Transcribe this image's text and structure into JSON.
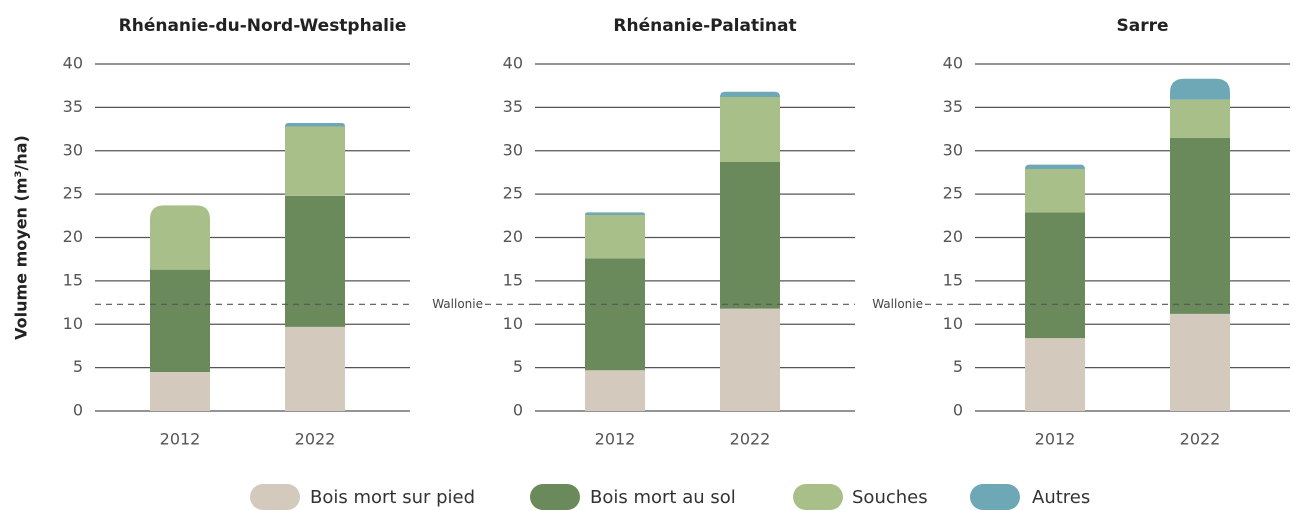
{
  "chart_data": [
    {
      "type": "bar",
      "stacked": true,
      "title": "Rhénanie-du-Nord-Westphalie",
      "y_label": "Volume moyen (m³/ha)",
      "categories": [
        "2012",
        "2022"
      ],
      "series": [
        {
          "name": "Bois mort sur pied",
          "color": "#d3c9bd",
          "values": [
            4.5,
            9.7
          ]
        },
        {
          "name": "Bois mort au sol",
          "color": "#6b8a5b",
          "values": [
            11.8,
            15.1
          ]
        },
        {
          "name": "Souches",
          "color": "#a9bf89",
          "values": [
            7.4,
            8.0
          ]
        },
        {
          "name": "Autres",
          "color": "#6ea7b5",
          "values": [
            0,
            0.4
          ]
        }
      ],
      "ylim": [
        0,
        40
      ],
      "yticks": [
        0,
        5,
        10,
        15,
        20,
        25,
        30,
        35,
        40
      ],
      "grid": true,
      "reference": {
        "value": 12.3
      }
    },
    {
      "type": "bar",
      "stacked": true,
      "title": "Rhénanie-Palatinat",
      "categories": [
        "2012",
        "2022"
      ],
      "series": [
        {
          "color": "#d3c9bd",
          "values": [
            4.7,
            11.8
          ]
        },
        {
          "color": "#6b8a5b",
          "values": [
            12.9,
            16.9
          ]
        },
        {
          "color": "#a9bf89",
          "values": [
            5.0,
            7.5
          ]
        },
        {
          "color": "#6ea7b5",
          "values": [
            0.3,
            0.6
          ]
        }
      ],
      "ylim": [
        0,
        40
      ],
      "yticks": [
        0,
        5,
        10,
        15,
        20,
        25,
        30,
        35,
        40
      ],
      "grid": true,
      "reference": {
        "value": 12.3,
        "label": "Wallonie"
      }
    },
    {
      "type": "bar",
      "stacked": true,
      "title": "Sarre",
      "categories": [
        "2012",
        "2022"
      ],
      "series": [
        {
          "color": "#d3c9bd",
          "values": [
            8.4,
            11.2
          ]
        },
        {
          "color": "#6b8a5b",
          "values": [
            14.5,
            20.3
          ]
        },
        {
          "color": "#a9bf89",
          "values": [
            5.0,
            4.4
          ]
        },
        {
          "color": "#6ea7b5",
          "values": [
            0.5,
            2.4
          ]
        }
      ],
      "ylim": [
        0,
        40
      ],
      "yticks": [
        0,
        5,
        10,
        15,
        20,
        25,
        30,
        35,
        40
      ],
      "grid": true,
      "reference": {
        "value": 12.3,
        "label": "Wallonie"
      }
    }
  ]
}
